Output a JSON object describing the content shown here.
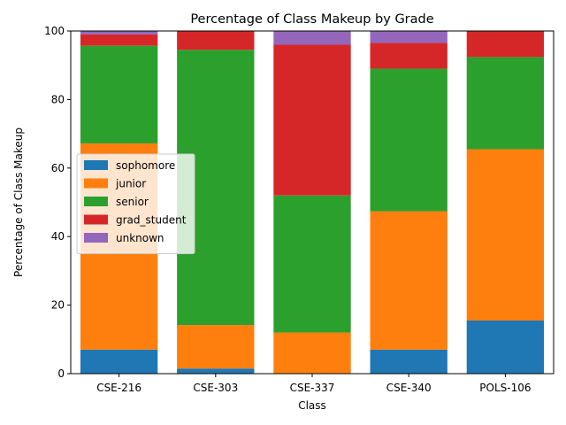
{
  "chart_data": {
    "type": "bar",
    "stacked": true,
    "title": "Percentage of Class Makeup by Grade",
    "xlabel": "Class",
    "ylabel": "Percentage of Class Makeup",
    "ylim": [
      0,
      100
    ],
    "yticks": [
      0,
      20,
      40,
      60,
      80,
      100
    ],
    "grid": false,
    "legend_position": "center-left",
    "categories": [
      "CSE-216",
      "CSE-303",
      "CSE-337",
      "CSE-340",
      "POLS-106"
    ],
    "series": [
      {
        "name": "sophomore",
        "color": "#1f77b4",
        "values": [
          7.0,
          1.5,
          0.0,
          7.0,
          15.5
        ]
      },
      {
        "name": "junior",
        "color": "#ff7f0e",
        "values": [
          60.2,
          12.7,
          12.0,
          40.4,
          50.0
        ]
      },
      {
        "name": "senior",
        "color": "#2ca02c",
        "values": [
          28.5,
          80.3,
          40.0,
          41.6,
          26.9
        ]
      },
      {
        "name": "grad_student",
        "color": "#d62728",
        "values": [
          3.3,
          5.5,
          44.0,
          7.5,
          7.6
        ]
      },
      {
        "name": "unknown",
        "color": "#9467bd",
        "values": [
          1.0,
          0.0,
          4.0,
          3.5,
          0.0
        ]
      }
    ]
  }
}
